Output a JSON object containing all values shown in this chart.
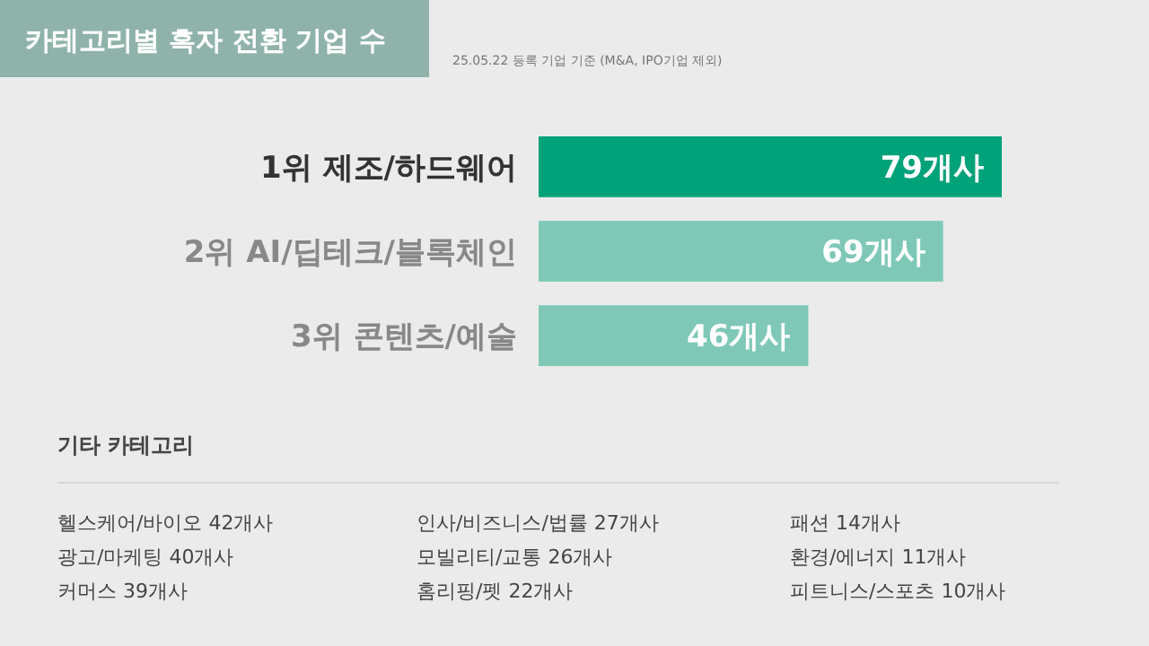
{
  "chart_data": {
    "type": "bar",
    "orientation": "horizontal",
    "title": "카테고리별 흑자 전환 기업 수",
    "subtitle": "25.05.22 등록 기업 기준 (M&A, IPO기업 제외)",
    "categories": [
      "1위  제조/하드웨어",
      "2위  AI/딥테크/블록체인",
      "3위  콘텐츠/예술"
    ],
    "values": [
      79,
      69,
      46
    ],
    "colors": [
      "#00a27a",
      "#7fc8b7",
      "#7fc8b7"
    ],
    "value_labels": [
      "79개사",
      "69개사",
      "46개사"
    ],
    "annotations": [
      "기타 카테고리",
      "헬스케어/바이오 42개사",
      "광고/마케팅 40개사",
      "커머스 39개사",
      "인사/비즈니스/법률 27개사",
      "모빌리티/교통 26개사",
      "홈리핑/펫 22개사",
      "패션 14개사",
      "환경/에너지 11개사",
      "피트니스/스포츠 10개사"
    ]
  }
}
